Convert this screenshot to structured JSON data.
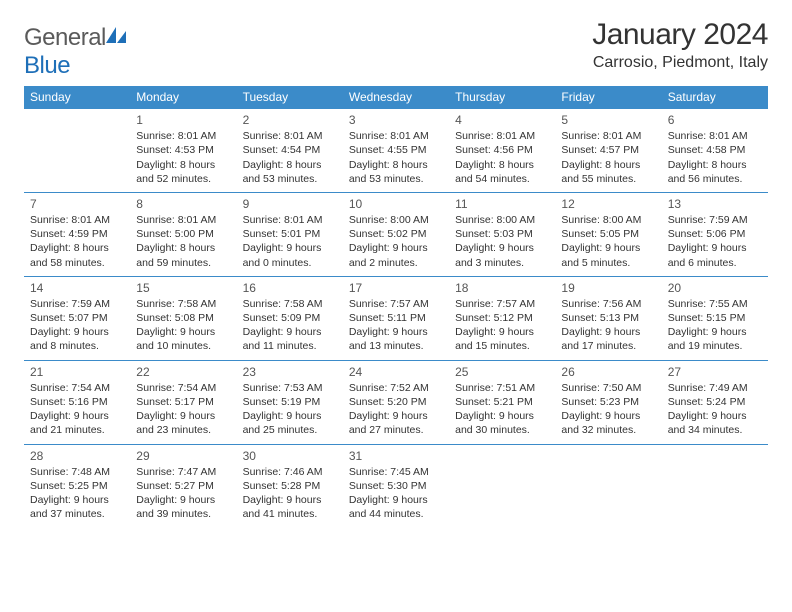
{
  "brand": {
    "prefix": "General",
    "suffix": "Blue"
  },
  "header": {
    "title": "January 2024",
    "location": "Carrosio, Piedmont, Italy"
  },
  "colors": {
    "header_bg": "#3b8bc9",
    "header_text": "#ffffff",
    "rule": "#3b8bc9",
    "text": "#333333",
    "brand_gray": "#5a5a5a",
    "brand_blue": "#1e6fb8"
  },
  "day_names": [
    "Sunday",
    "Monday",
    "Tuesday",
    "Wednesday",
    "Thursday",
    "Friday",
    "Saturday"
  ],
  "labels": {
    "sunrise": "Sunrise:",
    "sunset": "Sunset:",
    "daylight": "Daylight:"
  },
  "weeks": [
    [
      null,
      {
        "n": "1",
        "sr": "8:01 AM",
        "ss": "4:53 PM",
        "dl": "8 hours and 52 minutes."
      },
      {
        "n": "2",
        "sr": "8:01 AM",
        "ss": "4:54 PM",
        "dl": "8 hours and 53 minutes."
      },
      {
        "n": "3",
        "sr": "8:01 AM",
        "ss": "4:55 PM",
        "dl": "8 hours and 53 minutes."
      },
      {
        "n": "4",
        "sr": "8:01 AM",
        "ss": "4:56 PM",
        "dl": "8 hours and 54 minutes."
      },
      {
        "n": "5",
        "sr": "8:01 AM",
        "ss": "4:57 PM",
        "dl": "8 hours and 55 minutes."
      },
      {
        "n": "6",
        "sr": "8:01 AM",
        "ss": "4:58 PM",
        "dl": "8 hours and 56 minutes."
      }
    ],
    [
      {
        "n": "7",
        "sr": "8:01 AM",
        "ss": "4:59 PM",
        "dl": "8 hours and 58 minutes."
      },
      {
        "n": "8",
        "sr": "8:01 AM",
        "ss": "5:00 PM",
        "dl": "8 hours and 59 minutes."
      },
      {
        "n": "9",
        "sr": "8:01 AM",
        "ss": "5:01 PM",
        "dl": "9 hours and 0 minutes."
      },
      {
        "n": "10",
        "sr": "8:00 AM",
        "ss": "5:02 PM",
        "dl": "9 hours and 2 minutes."
      },
      {
        "n": "11",
        "sr": "8:00 AM",
        "ss": "5:03 PM",
        "dl": "9 hours and 3 minutes."
      },
      {
        "n": "12",
        "sr": "8:00 AM",
        "ss": "5:05 PM",
        "dl": "9 hours and 5 minutes."
      },
      {
        "n": "13",
        "sr": "7:59 AM",
        "ss": "5:06 PM",
        "dl": "9 hours and 6 minutes."
      }
    ],
    [
      {
        "n": "14",
        "sr": "7:59 AM",
        "ss": "5:07 PM",
        "dl": "9 hours and 8 minutes."
      },
      {
        "n": "15",
        "sr": "7:58 AM",
        "ss": "5:08 PM",
        "dl": "9 hours and 10 minutes."
      },
      {
        "n": "16",
        "sr": "7:58 AM",
        "ss": "5:09 PM",
        "dl": "9 hours and 11 minutes."
      },
      {
        "n": "17",
        "sr": "7:57 AM",
        "ss": "5:11 PM",
        "dl": "9 hours and 13 minutes."
      },
      {
        "n": "18",
        "sr": "7:57 AM",
        "ss": "5:12 PM",
        "dl": "9 hours and 15 minutes."
      },
      {
        "n": "19",
        "sr": "7:56 AM",
        "ss": "5:13 PM",
        "dl": "9 hours and 17 minutes."
      },
      {
        "n": "20",
        "sr": "7:55 AM",
        "ss": "5:15 PM",
        "dl": "9 hours and 19 minutes."
      }
    ],
    [
      {
        "n": "21",
        "sr": "7:54 AM",
        "ss": "5:16 PM",
        "dl": "9 hours and 21 minutes."
      },
      {
        "n": "22",
        "sr": "7:54 AM",
        "ss": "5:17 PM",
        "dl": "9 hours and 23 minutes."
      },
      {
        "n": "23",
        "sr": "7:53 AM",
        "ss": "5:19 PM",
        "dl": "9 hours and 25 minutes."
      },
      {
        "n": "24",
        "sr": "7:52 AM",
        "ss": "5:20 PM",
        "dl": "9 hours and 27 minutes."
      },
      {
        "n": "25",
        "sr": "7:51 AM",
        "ss": "5:21 PM",
        "dl": "9 hours and 30 minutes."
      },
      {
        "n": "26",
        "sr": "7:50 AM",
        "ss": "5:23 PM",
        "dl": "9 hours and 32 minutes."
      },
      {
        "n": "27",
        "sr": "7:49 AM",
        "ss": "5:24 PM",
        "dl": "9 hours and 34 minutes."
      }
    ],
    [
      {
        "n": "28",
        "sr": "7:48 AM",
        "ss": "5:25 PM",
        "dl": "9 hours and 37 minutes."
      },
      {
        "n": "29",
        "sr": "7:47 AM",
        "ss": "5:27 PM",
        "dl": "9 hours and 39 minutes."
      },
      {
        "n": "30",
        "sr": "7:46 AM",
        "ss": "5:28 PM",
        "dl": "9 hours and 41 minutes."
      },
      {
        "n": "31",
        "sr": "7:45 AM",
        "ss": "5:30 PM",
        "dl": "9 hours and 44 minutes."
      },
      null,
      null,
      null
    ]
  ]
}
